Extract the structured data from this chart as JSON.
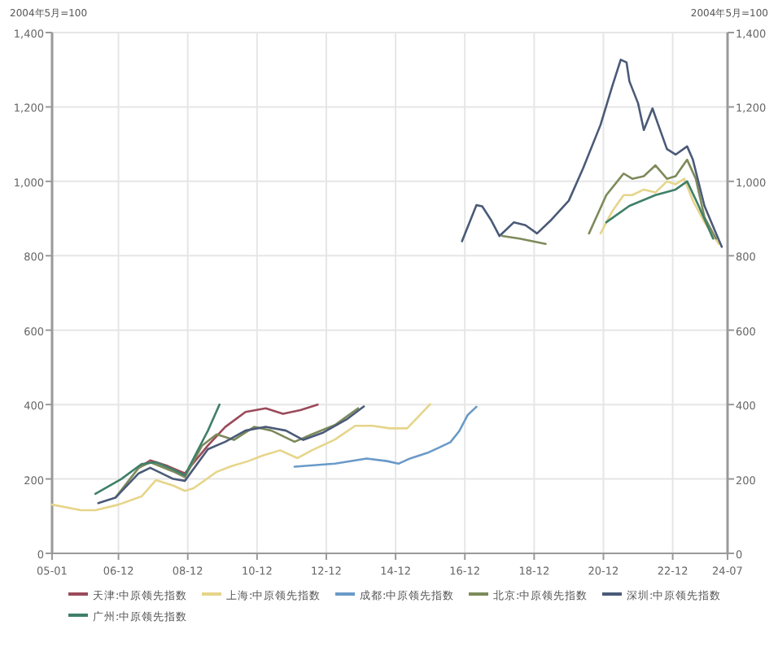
{
  "chart_data": {
    "type": "line",
    "ylabel": "2004年5月=100",
    "y2label": "2004年5月=100",
    "xlim": [
      "2005-01",
      "2024-07"
    ],
    "xticks": [
      {
        "value": "2005-01",
        "label": "05-01"
      },
      {
        "value": "2006-12",
        "label": "06-12"
      },
      {
        "value": "2008-12",
        "label": "08-12"
      },
      {
        "value": "2010-12",
        "label": "10-12"
      },
      {
        "value": "2012-12",
        "label": "12-12"
      },
      {
        "value": "2014-12",
        "label": "14-12"
      },
      {
        "value": "2016-12",
        "label": "16-12"
      },
      {
        "value": "2018-12",
        "label": "18-12"
      },
      {
        "value": "2020-12",
        "label": "20-12"
      },
      {
        "value": "2022-12",
        "label": "22-12"
      },
      {
        "value": "2024-07",
        "label": "24-07"
      }
    ],
    "ylim": [
      0,
      1400
    ],
    "yticks": [
      0,
      200,
      400,
      600,
      800,
      {
        "value": 1000,
        "label": "1,000"
      },
      {
        "value": 1200,
        "label": "1,200"
      },
      {
        "value": 1400,
        "label": "1,400"
      }
    ],
    "y2lim": [
      0,
      1400
    ],
    "y2ticks": [
      0,
      200,
      400,
      600,
      800,
      {
        "value": 1000,
        "label": "1,000"
      },
      {
        "value": 1200,
        "label": "1,200"
      },
      {
        "value": 1400,
        "label": "1,400"
      }
    ],
    "grid": true,
    "legend": "bottom",
    "marker": "none",
    "line_style": "solid",
    "series": [
      {
        "name": "天津:中原领先指数",
        "color": "#9b4a5a",
        "x": [
          "2007-07",
          "2007-11",
          "2008-05",
          "2008-11",
          "2009-07",
          "2010-01",
          "2010-08",
          "2011-03",
          "2011-09",
          "2012-03",
          "2012-09"
        ],
        "values": [
          230,
          250,
          235,
          215,
          290,
          340,
          380,
          390,
          375,
          385,
          400
        ]
      },
      {
        "name": "上海:中原领先指数",
        "color": "#e6d58a",
        "x": [
          "2005-01",
          "2005-11",
          "2006-04",
          "2006-12",
          "2007-08",
          "2008-01",
          "2008-07",
          "2008-11",
          "2009-02",
          "2009-10",
          "2010-03",
          "2010-09",
          "2011-02",
          "2011-08",
          "2012-02",
          "2012-07",
          "2013-03",
          "2013-10",
          "2014-04",
          "2014-10",
          "2015-04",
          "2015-12",
          "2018-01",
          "2020-11",
          "2021-03",
          "2021-07",
          "2021-10",
          "2022-02",
          "2022-06",
          "2022-10",
          "2023-01",
          "2023-04",
          "2023-07",
          "2023-11",
          "2024-04"
        ],
        "values": [
          131,
          116,
          116,
          131,
          153,
          197,
          182,
          168,
          175,
          219,
          234,
          248,
          263,
          277,
          256,
          277,
          306,
          343,
          343,
          336,
          336,
          401,
          null,
          860,
          919,
          963,
          963,
          978,
          970,
          1000,
          992,
          1007,
          948,
          890,
          832
        ]
      },
      {
        "name": "成都:中原领先指数",
        "color": "#6a9ac8",
        "x": [
          "2012-01",
          "2013-03",
          "2014-02",
          "2014-09",
          "2015-01",
          "2015-05",
          "2015-11",
          "2016-03",
          "2016-07",
          "2016-10",
          "2017-01",
          "2017-04"
        ],
        "values": [
          233,
          241,
          255,
          248,
          241,
          255,
          270,
          284,
          299,
          328,
          372,
          394
        ]
      },
      {
        "name": "北京:中原领先指数",
        "color": "#7d8a5a",
        "x": [
          "2006-11",
          "2007-07",
          "2007-11",
          "2008-07",
          "2008-11",
          "2009-05",
          "2009-10",
          "2010-04",
          "2010-11",
          "2011-05",
          "2012-01",
          "2012-07",
          "2013-03",
          "2013-11",
          "2016-01",
          "2018-01",
          "2018-07",
          "2019-04",
          "2020-01",
          "2020-07",
          "2021-01",
          "2021-07",
          "2021-10",
          "2022-02",
          "2022-06",
          "2022-10",
          "2023-01",
          "2023-05",
          "2023-08",
          "2023-11",
          "2024-03"
        ],
        "values": [
          150,
          230,
          245,
          220,
          205,
          290,
          320,
          305,
          340,
          330,
          300,
          320,
          345,
          390,
          null,
          853,
          846,
          832,
          null,
          860,
          963,
          1021,
          1007,
          1014,
          1043,
          1007,
          1014,
          1058,
          1007,
          904,
          846
        ]
      },
      {
        "name": "深圳:中原领先指数",
        "color": "#4a5a78",
        "x": [
          "2006-05",
          "2006-11",
          "2007-07",
          "2007-11",
          "2008-07",
          "2008-11",
          "2009-07",
          "2010-01",
          "2010-08",
          "2011-03",
          "2011-10",
          "2012-04",
          "2012-11",
          "2013-07",
          "2014-01",
          "2015-07",
          "2016-11",
          "2017-04",
          "2017-06",
          "2017-09",
          "2017-12",
          "2018-05",
          "2018-09",
          "2019-01",
          "2019-06",
          "2019-12",
          "2020-05",
          "2020-11",
          "2021-03",
          "2021-06",
          "2021-08",
          "2021-09",
          "2021-12",
          "2022-02",
          "2022-05",
          "2022-07",
          "2022-10",
          "2023-01",
          "2023-05",
          "2023-07",
          "2023-11",
          "2024-03",
          "2024-05"
        ],
        "values": [
          135,
          150,
          215,
          230,
          200,
          195,
          280,
          300,
          330,
          340,
          330,
          305,
          325,
          360,
          395,
          null,
          839,
          936,
          933,
          897,
          853,
          890,
          882,
          860,
          897,
          948,
          1036,
          1152,
          1254,
          1327,
          1320,
          1269,
          1210,
          1138,
          1196,
          1152,
          1087,
          1072,
          1094,
          1058,
          934,
          860,
          824
        ]
      },
      {
        "name": "广州:中原领先指数",
        "color": "#3f7f6a",
        "x": [
          "2006-04",
          "2007-01",
          "2007-08",
          "2008-01",
          "2008-07",
          "2008-11",
          "2009-07",
          "2009-11",
          "2015-01",
          "2021-01",
          "2021-09",
          "2022-06",
          "2023-01",
          "2023-05",
          "2023-09",
          "2024-02"
        ],
        "values": [
          160,
          200,
          240,
          245,
          225,
          210,
          330,
          400,
          null,
          890,
          934,
          963,
          978,
          1000,
          934,
          846
        ]
      }
    ]
  }
}
